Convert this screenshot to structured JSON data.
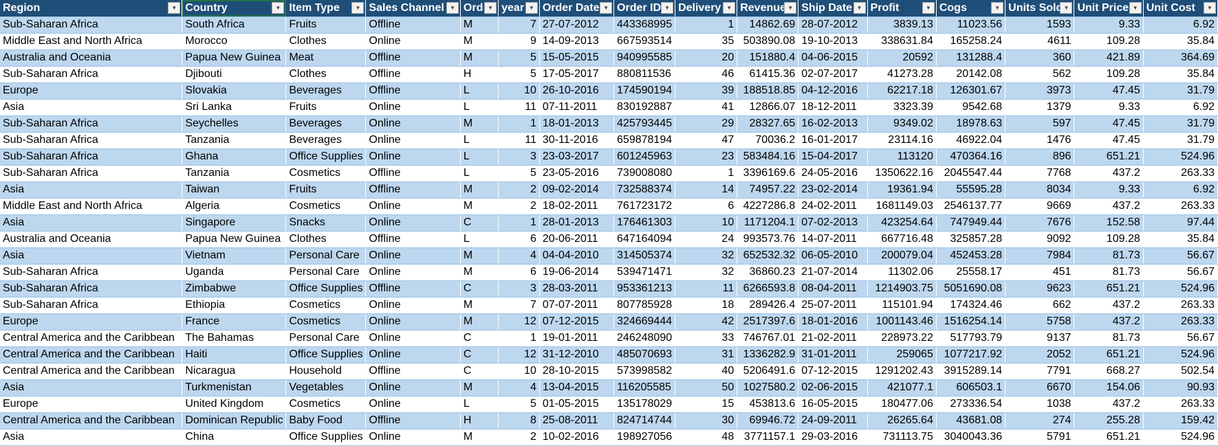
{
  "columns": [
    "Region",
    "Country",
    "Item Type",
    "Sales Channel",
    "Ord",
    "year",
    "Order Date",
    "Order ID",
    "Delivery",
    "Revenue",
    "Ship Date",
    "Profit",
    "Cogs",
    "Units Sold",
    "Unit Price",
    "Unit Cost"
  ],
  "filter_icon": "dropdown-arrow-icon",
  "colors": {
    "header_bg": "#1f4e78",
    "band": "#bdd7ee",
    "header_text": "#ffffff"
  },
  "rows": [
    [
      "Sub-Saharan Africa",
      "South Africa",
      "Fruits",
      "Offline",
      "M",
      "7",
      "27-07-2012",
      "443368995",
      "1",
      "14862.69",
      "28-07-2012",
      "3839.13",
      "11023.56",
      "1593",
      "9.33",
      "6.92"
    ],
    [
      "Middle East and North Africa",
      "Morocco",
      "Clothes",
      "Online",
      "M",
      "9",
      "14-09-2013",
      "667593514",
      "35",
      "503890.08",
      "19-10-2013",
      "338631.84",
      "165258.24",
      "4611",
      "109.28",
      "35.84"
    ],
    [
      "Australia and Oceania",
      "Papua New Guinea",
      "Meat",
      "Offline",
      "M",
      "5",
      "15-05-2015",
      "940995585",
      "20",
      "151880.4",
      "04-06-2015",
      "20592",
      "131288.4",
      "360",
      "421.89",
      "364.69"
    ],
    [
      "Sub-Saharan Africa",
      "Djibouti",
      "Clothes",
      "Offline",
      "H",
      "5",
      "17-05-2017",
      "880811536",
      "46",
      "61415.36",
      "02-07-2017",
      "41273.28",
      "20142.08",
      "562",
      "109.28",
      "35.84"
    ],
    [
      "Europe",
      "Slovakia",
      "Beverages",
      "Offline",
      "L",
      "10",
      "26-10-2016",
      "174590194",
      "39",
      "188518.85",
      "04-12-2016",
      "62217.18",
      "126301.67",
      "3973",
      "47.45",
      "31.79"
    ],
    [
      "Asia",
      "Sri Lanka",
      "Fruits",
      "Online",
      "L",
      "11",
      "07-11-2011",
      "830192887",
      "41",
      "12866.07",
      "18-12-2011",
      "3323.39",
      "9542.68",
      "1379",
      "9.33",
      "6.92"
    ],
    [
      "Sub-Saharan Africa",
      "Seychelles",
      "Beverages",
      "Online",
      "M",
      "1",
      "18-01-2013",
      "425793445",
      "29",
      "28327.65",
      "16-02-2013",
      "9349.02",
      "18978.63",
      "597",
      "47.45",
      "31.79"
    ],
    [
      "Sub-Saharan Africa",
      "Tanzania",
      "Beverages",
      "Online",
      "L",
      "11",
      "30-11-2016",
      "659878194",
      "47",
      "70036.2",
      "16-01-2017",
      "23114.16",
      "46922.04",
      "1476",
      "47.45",
      "31.79"
    ],
    [
      "Sub-Saharan Africa",
      "Ghana",
      "Office Supplies",
      "Online",
      "L",
      "3",
      "23-03-2017",
      "601245963",
      "23",
      "583484.16",
      "15-04-2017",
      "113120",
      "470364.16",
      "896",
      "651.21",
      "524.96"
    ],
    [
      "Sub-Saharan Africa",
      "Tanzania",
      "Cosmetics",
      "Offline",
      "L",
      "5",
      "23-05-2016",
      "739008080",
      "1",
      "3396169.6",
      "24-05-2016",
      "1350622.16",
      "2045547.44",
      "7768",
      "437.2",
      "263.33"
    ],
    [
      "Asia",
      "Taiwan",
      "Fruits",
      "Offline",
      "M",
      "2",
      "09-02-2014",
      "732588374",
      "14",
      "74957.22",
      "23-02-2014",
      "19361.94",
      "55595.28",
      "8034",
      "9.33",
      "6.92"
    ],
    [
      "Middle East and North Africa",
      "Algeria",
      "Cosmetics",
      "Online",
      "M",
      "2",
      "18-02-2011",
      "761723172",
      "6",
      "4227286.8",
      "24-02-2011",
      "1681149.03",
      "2546137.77",
      "9669",
      "437.2",
      "263.33"
    ],
    [
      "Asia",
      "Singapore",
      "Snacks",
      "Online",
      "C",
      "1",
      "28-01-2013",
      "176461303",
      "10",
      "1171204.1",
      "07-02-2013",
      "423254.64",
      "747949.44",
      "7676",
      "152.58",
      "97.44"
    ],
    [
      "Australia and Oceania",
      "Papua New Guinea",
      "Clothes",
      "Offline",
      "L",
      "6",
      "20-06-2011",
      "647164094",
      "24",
      "993573.76",
      "14-07-2011",
      "667716.48",
      "325857.28",
      "9092",
      "109.28",
      "35.84"
    ],
    [
      "Asia",
      "Vietnam",
      "Personal Care",
      "Online",
      "M",
      "4",
      "04-04-2010",
      "314505374",
      "32",
      "652532.32",
      "06-05-2010",
      "200079.04",
      "452453.28",
      "7984",
      "81.73",
      "56.67"
    ],
    [
      "Sub-Saharan Africa",
      "Uganda",
      "Personal Care",
      "Online",
      "M",
      "6",
      "19-06-2014",
      "539471471",
      "32",
      "36860.23",
      "21-07-2014",
      "11302.06",
      "25558.17",
      "451",
      "81.73",
      "56.67"
    ],
    [
      "Sub-Saharan Africa",
      "Zimbabwe",
      "Office Supplies",
      "Offline",
      "C",
      "3",
      "28-03-2011",
      "953361213",
      "11",
      "6266593.8",
      "08-04-2011",
      "1214903.75",
      "5051690.08",
      "9623",
      "651.21",
      "524.96"
    ],
    [
      "Sub-Saharan Africa",
      "Ethiopia",
      "Cosmetics",
      "Online",
      "M",
      "7",
      "07-07-2011",
      "807785928",
      "18",
      "289426.4",
      "25-07-2011",
      "115101.94",
      "174324.46",
      "662",
      "437.2",
      "263.33"
    ],
    [
      "Europe",
      "France",
      "Cosmetics",
      "Online",
      "M",
      "12",
      "07-12-2015",
      "324669444",
      "42",
      "2517397.6",
      "18-01-2016",
      "1001143.46",
      "1516254.14",
      "5758",
      "437.2",
      "263.33"
    ],
    [
      "Central America and the Caribbean",
      "The Bahamas",
      "Personal Care",
      "Online",
      "C",
      "1",
      "19-01-2011",
      "246248090",
      "33",
      "746767.01",
      "21-02-2011",
      "228973.22",
      "517793.79",
      "9137",
      "81.73",
      "56.67"
    ],
    [
      "Central America and the Caribbean",
      "Haiti",
      "Office Supplies",
      "Online",
      "C",
      "12",
      "31-12-2010",
      "485070693",
      "31",
      "1336282.9",
      "31-01-2011",
      "259065",
      "1077217.92",
      "2052",
      "651.21",
      "524.96"
    ],
    [
      "Central America and the Caribbean",
      "Nicaragua",
      "Household",
      "Offline",
      "C",
      "10",
      "28-10-2015",
      "573998582",
      "40",
      "5206491.6",
      "07-12-2015",
      "1291202.43",
      "3915289.14",
      "7791",
      "668.27",
      "502.54"
    ],
    [
      "Asia",
      "Turkmenistan",
      "Vegetables",
      "Online",
      "M",
      "4",
      "13-04-2015",
      "116205585",
      "50",
      "1027580.2",
      "02-06-2015",
      "421077.1",
      "606503.1",
      "6670",
      "154.06",
      "90.93"
    ],
    [
      "Europe",
      "United Kingdom",
      "Cosmetics",
      "Online",
      "L",
      "5",
      "01-05-2015",
      "135178029",
      "15",
      "453813.6",
      "16-05-2015",
      "180477.06",
      "273336.54",
      "1038",
      "437.2",
      "263.33"
    ],
    [
      "Central America and the Caribbean",
      "Dominican Republic",
      "Baby Food",
      "Offline",
      "H",
      "8",
      "25-08-2011",
      "824714744",
      "30",
      "69946.72",
      "24-09-2011",
      "26265.64",
      "43681.08",
      "274",
      "255.28",
      "159.42"
    ],
    [
      "Asia",
      "China",
      "Office Supplies",
      "Online",
      "M",
      "2",
      "10-02-2016",
      "198927056",
      "48",
      "3771157.1",
      "29-03-2016",
      "731113.75",
      "3040043.36",
      "5791",
      "651.21",
      "524.96"
    ]
  ]
}
